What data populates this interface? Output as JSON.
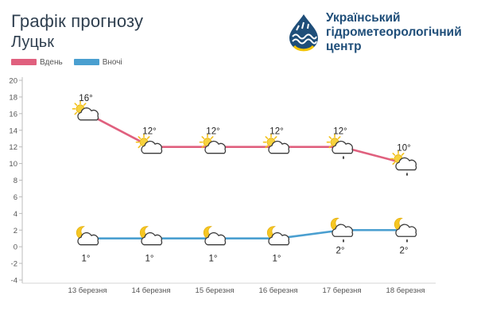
{
  "header": {
    "title": "Графік прогнозу",
    "city": "Луцьк"
  },
  "org": {
    "line1": "Український",
    "line2": "гідрометеорологічний",
    "line3": "центр"
  },
  "legend": [
    {
      "label": "Вдень",
      "color": "#e0607e"
    },
    {
      "label": "Вночі",
      "color": "#4a9fd0"
    }
  ],
  "chart_data": {
    "type": "line",
    "categories": [
      "13 березня",
      "14 березня",
      "15 березня",
      "16 березня",
      "17 березня",
      "18 березня"
    ],
    "series": [
      {
        "name": "Вдень",
        "values": [
          16,
          12,
          12,
          12,
          12,
          10
        ],
        "labels": [
          "16°",
          "12°",
          "12°",
          "12°",
          "12°",
          "10°"
        ],
        "icons": [
          "sun-cloud",
          "sun-cloud",
          "sun-cloud",
          "sun-cloud",
          "sun-cloud-rain",
          "sun-cloud-rain"
        ]
      },
      {
        "name": "Вночі",
        "values": [
          1,
          1,
          1,
          1,
          2,
          2
        ],
        "labels": [
          "1°",
          "1°",
          "1°",
          "1°",
          "2°",
          "2°"
        ],
        "icons": [
          "moon-cloud",
          "moon-cloud",
          "moon-cloud",
          "moon-cloud",
          "moon-cloud-rain",
          "moon-cloud-rain"
        ]
      }
    ],
    "ylim": [
      -4,
      20
    ],
    "yticks": [
      -4,
      -2,
      0,
      2,
      4,
      6,
      8,
      10,
      12,
      14,
      16,
      18,
      20
    ],
    "grid": false,
    "legend_position": "top-left",
    "title": "",
    "xlabel": "",
    "ylabel": ""
  }
}
